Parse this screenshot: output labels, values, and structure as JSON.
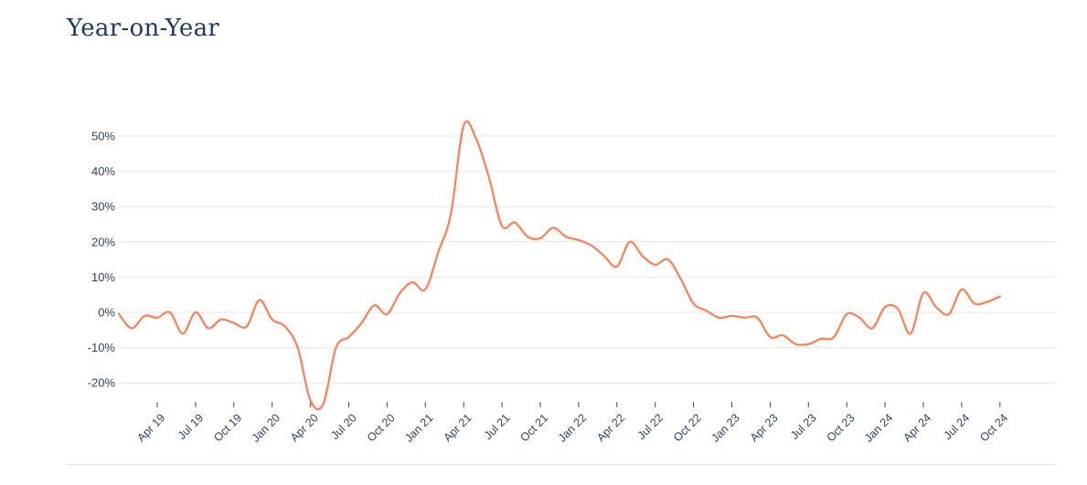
{
  "page": {
    "title": "Year-on-Year"
  },
  "colors": {
    "title": "#1f3a5f",
    "tick_text": "#2e4460",
    "series": "#f5855f"
  },
  "chart_data": {
    "type": "line",
    "title": "Year-on-Year",
    "xlabel": "",
    "ylabel": "",
    "ylim": [
      -25,
      55
    ],
    "y_unit": "%",
    "y_ticks": [
      -20,
      -10,
      0,
      10,
      20,
      30,
      40,
      50
    ],
    "y_tick_labels": [
      "-20%",
      "-10%",
      "0%",
      "10%",
      "20%",
      "30%",
      "40%",
      "50%"
    ],
    "grid": true,
    "legend": "none",
    "x_ticks": [
      "Apr 19",
      "Jul 19",
      "Oct 19",
      "Jan 20",
      "Apr 20",
      "Jul 20",
      "Oct 20",
      "Jan 21",
      "Apr 21",
      "Jul 21",
      "Oct 21",
      "Jan 22",
      "Apr 22",
      "Jul 22",
      "Oct 22",
      "Jan 23",
      "Apr 23",
      "Jul 23",
      "Oct 23",
      "Jan 24",
      "Apr 24",
      "Jul 24",
      "Oct 24"
    ],
    "x": [
      "Jan 19",
      "Feb 19",
      "Mar 19",
      "Apr 19",
      "May 19",
      "Jun 19",
      "Jul 19",
      "Aug 19",
      "Sep 19",
      "Oct 19",
      "Nov 19",
      "Dec 19",
      "Jan 20",
      "Feb 20",
      "Mar 20",
      "Apr 20",
      "May 20",
      "Jun 20",
      "Jul 20",
      "Aug 20",
      "Sep 20",
      "Oct 20",
      "Nov 20",
      "Dec 20",
      "Jan 21",
      "Feb 21",
      "Mar 21",
      "Apr 21",
      "May 21",
      "Jun 21",
      "Jul 21",
      "Aug 21",
      "Sep 21",
      "Oct 21",
      "Nov 21",
      "Dec 21",
      "Jan 22",
      "Feb 22",
      "Mar 22",
      "Apr 22",
      "May 22",
      "Jun 22",
      "Jul 22",
      "Aug 22",
      "Sep 22",
      "Oct 22",
      "Nov 22",
      "Dec 22",
      "Jan 23",
      "Feb 23",
      "Mar 23",
      "Apr 23",
      "May 23",
      "Jun 23",
      "Jul 23",
      "Aug 23",
      "Sep 23",
      "Oct 23",
      "Nov 23",
      "Dec 23",
      "Jan 24",
      "Feb 24",
      "Mar 24",
      "Apr 24",
      "May 24",
      "Jun 24",
      "Jul 24",
      "Aug 24",
      "Sep 24",
      "Oct 24"
    ],
    "series": [
      {
        "values": [
          -0.5,
          -4.5,
          -1,
          -1.5,
          0,
          -6,
          0,
          -4.5,
          -2,
          -3,
          -4,
          3.5,
          -2,
          -4,
          -10,
          -25,
          -26,
          -10,
          -7,
          -3,
          2,
          -0.5,
          5.5,
          8.5,
          6.5,
          17,
          28,
          53,
          49,
          38,
          24.5,
          25.5,
          21.5,
          21,
          24,
          21.5,
          20.5,
          19,
          16,
          13,
          20,
          16,
          13.5,
          15,
          9.5,
          2.5,
          0.5,
          -1.5,
          -1,
          -1.5,
          -1.5,
          -7,
          -6.5,
          -9,
          -9,
          -7.5,
          -7,
          -0.5,
          -1.5,
          -4.5,
          1.5,
          1,
          -6,
          5.5,
          1.5,
          -0.5,
          6.5,
          2.5,
          3,
          4.5
        ]
      }
    ]
  }
}
